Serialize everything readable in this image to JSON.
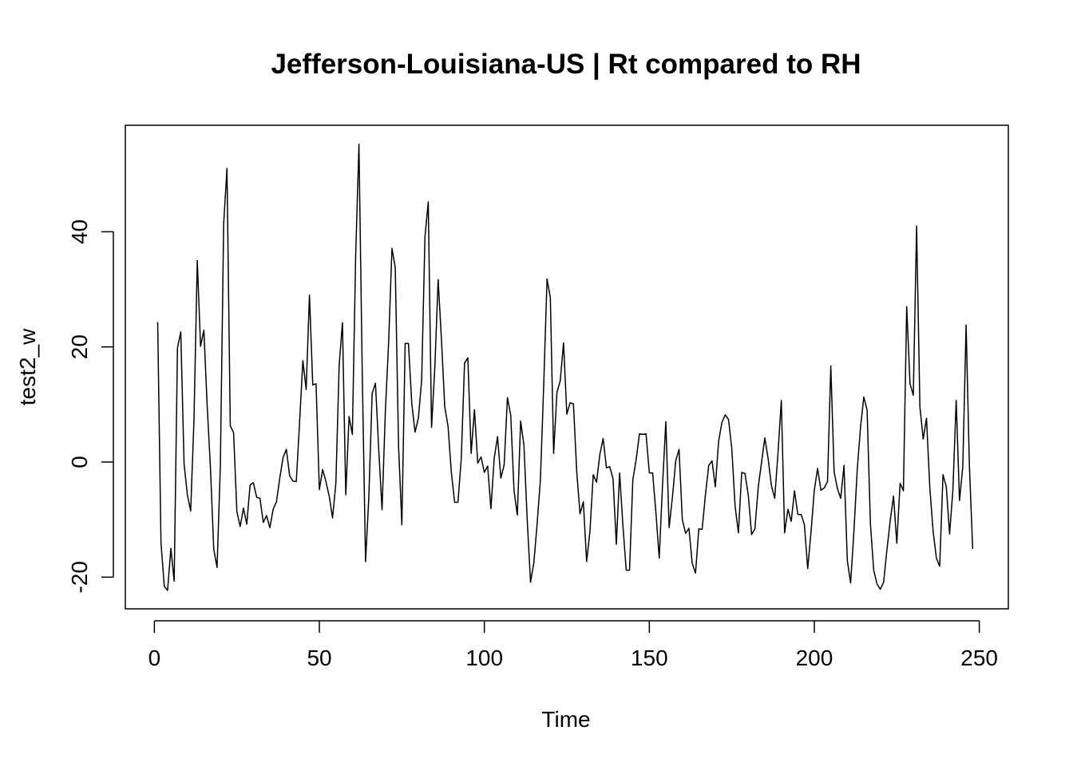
{
  "chart_data": {
    "type": "line",
    "title": "Jefferson-Louisiana-US | Rt compared to RH",
    "xlabel": "Time",
    "ylabel": "test2_w",
    "xlim": [
      -8.8,
      258.8
    ],
    "ylim": [
      -25.5,
      58.5
    ],
    "xticks": [
      0,
      50,
      100,
      150,
      200,
      250
    ],
    "yticks": [
      -20,
      0,
      20,
      40
    ],
    "grid": false,
    "colors": {
      "line": "#000000",
      "axis": "#000000",
      "background": "#ffffff"
    },
    "series": [
      {
        "x_start": 1,
        "values": [
          24.3,
          -14.0,
          -21.6,
          -22.3,
          -15.0,
          -20.7,
          19.8,
          22.6,
          -0.3,
          -5.7,
          -8.5,
          7.3,
          35.0,
          20.1,
          22.9,
          9.8,
          -1.1,
          -15.2,
          -18.3,
          -0.5,
          41.4,
          51.0,
          6.3,
          5.1,
          -8.6,
          -11.2,
          -8.0,
          -10.8,
          -4.0,
          -3.6,
          -6.1,
          -6.3,
          -10.5,
          -9.3,
          -11.4,
          -8.2,
          -6.9,
          -2.8,
          0.8,
          2.2,
          -2.4,
          -3.3,
          -3.4,
          6.8,
          17.6,
          12.6,
          29.0,
          13.4,
          13.6,
          -4.8,
          -1.3,
          -3.4,
          -6.0,
          -9.7,
          -3.7,
          16.8,
          24.2,
          -5.7,
          7.9,
          4.8,
          35.8,
          55.2,
          15.4,
          -17.3,
          -6.0,
          11.9,
          13.7,
          2.1,
          -8.3,
          8.8,
          20.9,
          37.1,
          33.8,
          2.8,
          -10.9,
          20.6,
          20.6,
          10.2,
          5.2,
          7.6,
          14.2,
          39.1,
          45.2,
          6.0,
          16.5,
          31.7,
          21.3,
          9.6,
          6.2,
          -1.8,
          -7.0,
          -7.0,
          0.5,
          17.2,
          18.1,
          1.5,
          9.1,
          -0.2,
          0.9,
          -1.8,
          -0.7,
          -8.1,
          0.7,
          4.4,
          -2.8,
          -0.5,
          11.2,
          8.1,
          -5.0,
          -9.2,
          7.1,
          2.9,
          -10.1,
          -20.9,
          -17.5,
          -10.7,
          -3.0,
          13.5,
          31.8,
          28.6,
          1.5,
          12.1,
          14.1,
          20.7,
          8.3,
          10.3,
          10.1,
          -1.7,
          -9.0,
          -6.9,
          -17.3,
          -12.1,
          -2.2,
          -3.5,
          1.3,
          4.1,
          -1.0,
          -0.8,
          -2.9,
          -14.3,
          -1.9,
          -11.1,
          -18.8,
          -18.8,
          -3.1,
          0.4,
          4.9,
          4.8,
          4.9,
          -1.9,
          -1.9,
          -8.8,
          -16.7,
          -4.0,
          7.0,
          -11.4,
          -6.1,
          0.2,
          2.2,
          -10.0,
          -12.4,
          -11.5,
          -17.6,
          -19.3,
          -11.6,
          -11.7,
          -5.7,
          -0.6,
          0.2,
          -4.3,
          3.6,
          6.9,
          8.2,
          7.4,
          2.3,
          -7.7,
          -12.3,
          -1.8,
          -2.0,
          -5.8,
          -12.6,
          -11.6,
          -4.4,
          -0.1,
          4.2,
          0.6,
          -4.1,
          -6.3,
          1.6,
          10.7,
          -12.3,
          -8.2,
          -10.3,
          -5.0,
          -9.1,
          -9.1,
          -10.9,
          -18.5,
          -12.2,
          -4.9,
          -1.1,
          -4.9,
          -4.5,
          -3.4,
          16.7,
          -1.7,
          -4.6,
          -6.3,
          -0.6,
          -17.1,
          -21.0,
          -12.1,
          -1.4,
          6.0,
          11.3,
          9.0,
          -10.7,
          -18.8,
          -21.2,
          -22.1,
          -20.9,
          -15.3,
          -10.2,
          -5.9,
          -14.1,
          -3.7,
          -5.0,
          27.0,
          13.6,
          11.6,
          41.0,
          9.6,
          4.0,
          7.6,
          -4.4,
          -12.0,
          -16.7,
          -18.1,
          -2.2,
          -4.3,
          -12.5,
          -4.8,
          10.7,
          -6.7,
          -0.8,
          23.8,
          -0.6,
          -15.1
        ]
      }
    ]
  }
}
